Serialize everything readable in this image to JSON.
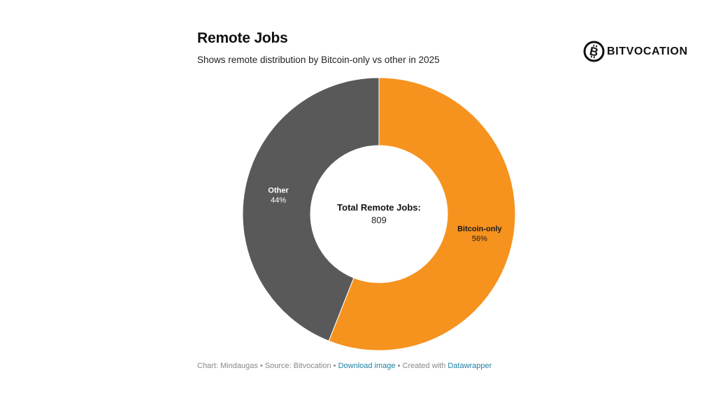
{
  "header": {
    "title": "Remote Jobs",
    "subtitle": "Shows remote distribution by Bitcoin-only vs other in 2025"
  },
  "logo": {
    "text": "BITVOCATION",
    "icon": "bitcoin-b-icon"
  },
  "chart_data": {
    "type": "pie",
    "variant": "donut",
    "title": "Remote Jobs",
    "subtitle": "Shows remote distribution by Bitcoin-only vs other in 2025",
    "center_label": "Total Remote Jobs:",
    "center_value": "809",
    "slices": [
      {
        "label": "Bitcoin-only",
        "value": 56,
        "value_label": "56%",
        "color": "#f6921e",
        "text_color": "#1a1a1a"
      },
      {
        "label": "Other",
        "value": 44,
        "value_label": "44%",
        "color": "#595959",
        "text_color": "#ffffff"
      }
    ]
  },
  "footer": {
    "chart_label": "Chart: Mindaugas",
    "source_label": "Source: Bitvocation",
    "download_link": "Download image",
    "created_with": "Created with",
    "tool_link": "Datawrapper",
    "separator": "•"
  },
  "colors": {
    "link": "#1d81a2",
    "muted_text": "#888888",
    "orange": "#f6921e",
    "gray": "#595959"
  }
}
